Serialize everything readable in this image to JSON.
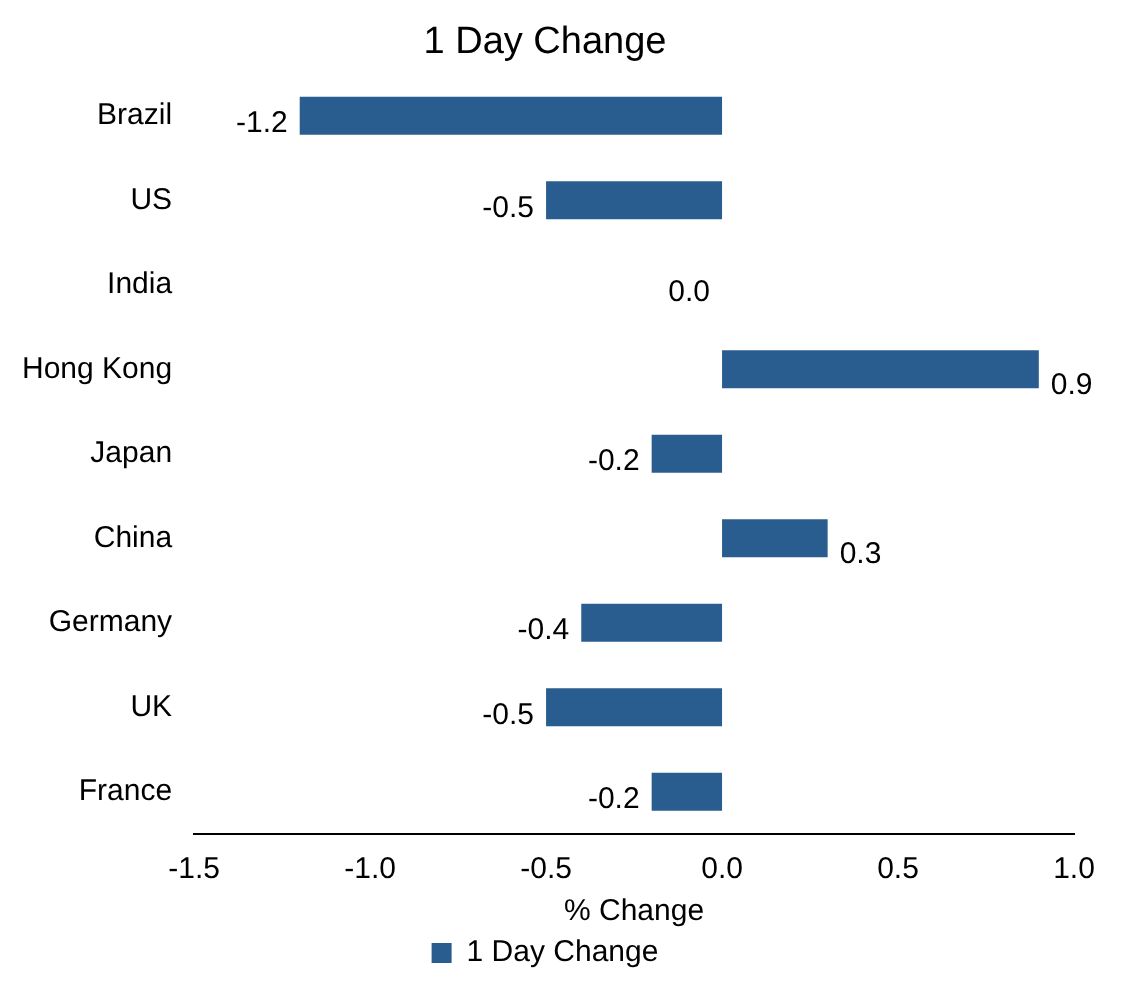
{
  "chart_data": {
    "type": "bar",
    "orientation": "horizontal",
    "title": "1 Day Change",
    "xlabel": "% Change",
    "categories": [
      "Brazil",
      "US",
      "India",
      "Hong Kong",
      "Japan",
      "China",
      "Germany",
      "UK",
      "France"
    ],
    "series": [
      {
        "name": "1 Day Change",
        "color": "#2a5d8f",
        "values": [
          -1.2,
          -0.5,
          0.0,
          0.9,
          -0.2,
          0.3,
          -0.4,
          -0.5,
          -0.2
        ],
        "value_labels": [
          "-1.2",
          "-0.5",
          "0.0",
          "0.9",
          "-0.2",
          "0.3",
          "-0.4",
          "-0.5",
          "-0.2"
        ]
      }
    ],
    "xlim": [
      -1.5,
      1.0
    ],
    "xticks": [
      {
        "value": -1.5,
        "label": "-1.5"
      },
      {
        "value": -1,
        "label": "-1.0"
      },
      {
        "value": -0.5,
        "label": "-0.5"
      },
      {
        "value": 0,
        "label": "0.0"
      },
      {
        "value": 0.5,
        "label": "0.5"
      },
      {
        "value": 1,
        "label": "1.0"
      }
    ],
    "grid": false,
    "legend": "bottom"
  }
}
